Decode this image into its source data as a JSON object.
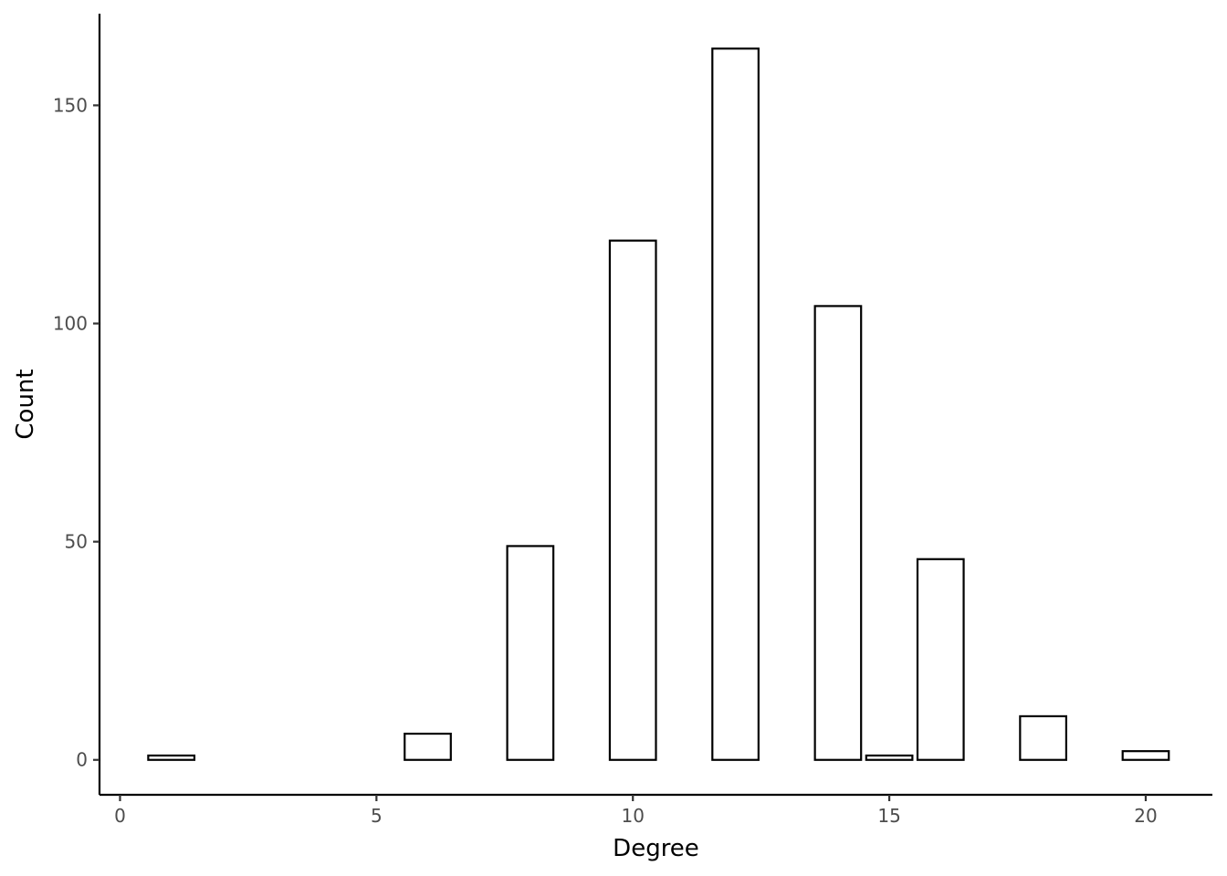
{
  "chart_data": {
    "type": "bar",
    "xlabel": "Degree",
    "ylabel": "Count",
    "xlim": [
      -0.4,
      21.3
    ],
    "ylim": [
      -8,
      171
    ],
    "x_ticks": [
      0,
      5,
      10,
      15,
      20
    ],
    "y_ticks": [
      0,
      50,
      100,
      150
    ],
    "bar_width": 0.9,
    "bars": [
      {
        "x": 1,
        "value": 1
      },
      {
        "x": 6,
        "value": 6
      },
      {
        "x": 8,
        "value": 49
      },
      {
        "x": 10,
        "value": 119
      },
      {
        "x": 12,
        "value": 163
      },
      {
        "x": 14,
        "value": 104
      },
      {
        "x": 15,
        "value": 1
      },
      {
        "x": 16,
        "value": 46
      },
      {
        "x": 18,
        "value": 10
      },
      {
        "x": 20,
        "value": 2
      }
    ],
    "grid": false,
    "bar_fill": "#ffffff",
    "bar_stroke": "#000000"
  }
}
